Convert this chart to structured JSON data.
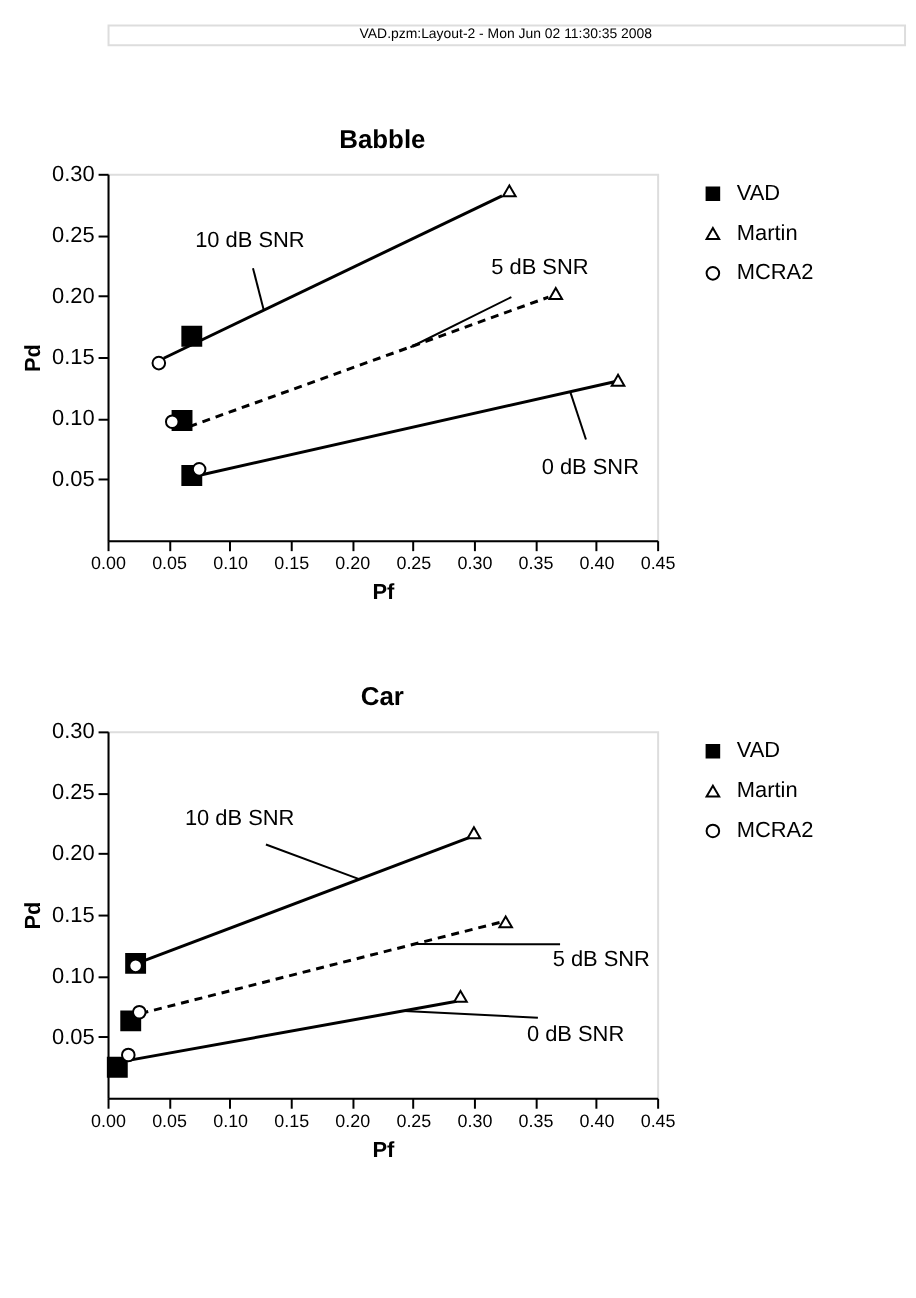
{
  "chart_data": [
    {
      "type": "scatter",
      "title": "Babble",
      "xlabel": "Pf",
      "ylabel": "Pd",
      "grid": false,
      "legend": "top right",
      "annotations": [
        "VAD.pzm:Layout-2 - Mon Jun 02 11:30:35 2008",
        {
          "text": "10 dB SNR",
          "x": 0.128,
          "y": 0.188
        },
        {
          "text": "5 dB SNR",
          "x": 0.248,
          "y": 0.158
        },
        {
          "text": "0 dB SNR",
          "x": 0.379,
          "y": 0.121
        }
      ],
      "xlim": [
        0,
        0.45
      ],
      "ylim": [
        0,
        0.3
      ],
      "xticks": [
        {
          "value": 0,
          "label": "0.00"
        },
        {
          "value": 0.05,
          "label": "0.05"
        },
        {
          "value": 0.1,
          "label": "0.10"
        },
        {
          "value": 0.15,
          "label": "0.15"
        },
        {
          "value": 0.2,
          "label": "0.20"
        },
        {
          "value": 0.25,
          "label": "0.25"
        },
        {
          "value": 0.3,
          "label": "0.30"
        },
        {
          "value": 0.35,
          "label": "0.35"
        },
        {
          "value": 0.4,
          "label": "0.40"
        },
        {
          "value": 0.45,
          "label": "0.45"
        }
      ],
      "yticks": [
        {
          "value": 0.05,
          "label": "0.05"
        },
        {
          "value": 0.1,
          "label": "0.10"
        },
        {
          "value": 0.15,
          "label": "0.15"
        },
        {
          "value": 0.2,
          "label": "0.20"
        },
        {
          "value": 0.25,
          "label": "0.25"
        },
        {
          "value": 0.3,
          "label": "0.30"
        }
      ],
      "series": [
        {
          "type": "line",
          "color": "#000000",
          "line_style": "solid",
          "marker": "none",
          "x": [
            0.046,
            0.323
          ],
          "values": [
            0.149,
            0.282
          ]
        },
        {
          "type": "line",
          "color": "#000000",
          "line_style": "dashed",
          "marker": "none",
          "x": [
            0.067,
            0.361
          ],
          "values": [
            0.093,
            0.199
          ]
        },
        {
          "type": "line",
          "color": "#000000",
          "line_style": "solid",
          "marker": "none",
          "x": [
            0.07,
            0.416
          ],
          "values": [
            0.052,
            0.13
          ]
        },
        {
          "type": "scatter",
          "name": "VAD",
          "color": "#000000",
          "marker": "square",
          "x": [
            0.069,
            0.061,
            0.069
          ],
          "values": [
            0.167,
            0.098,
            0.053
          ]
        },
        {
          "type": "scatter",
          "name": "Martin",
          "color": "#000000",
          "marker": "triangle",
          "x": [
            0.329,
            0.367,
            0.418
          ],
          "values": [
            0.286,
            0.202,
            0.131
          ]
        },
        {
          "type": "scatter",
          "name": "MCRA2",
          "color": "#000000",
          "marker": "circle",
          "x": [
            0.042,
            0.053,
            0.075
          ],
          "values": [
            0.145,
            0.097,
            0.058
          ]
        }
      ]
    },
    {
      "type": "scatter",
      "title": "Car",
      "xlabel": "Pf",
      "ylabel": "Pd",
      "grid": false,
      "legend": "top right",
      "annotations": [
        {
          "text": "10 dB SNR",
          "x": 0.206,
          "y": 0.179
        },
        {
          "text": "5 dB SNR",
          "x": 0.251,
          "y": 0.126
        },
        {
          "text": "0 dB SNR",
          "x": 0.243,
          "y": 0.071
        }
      ],
      "xlim": [
        0,
        0.45
      ],
      "ylim": [
        0,
        0.3
      ],
      "xticks": [
        {
          "value": 0,
          "label": "0.00"
        },
        {
          "value": 0.05,
          "label": "0.05"
        },
        {
          "value": 0.1,
          "label": "0.10"
        },
        {
          "value": 0.15,
          "label": "0.15"
        },
        {
          "value": 0.2,
          "label": "0.20"
        },
        {
          "value": 0.25,
          "label": "0.25"
        },
        {
          "value": 0.3,
          "label": "0.30"
        },
        {
          "value": 0.35,
          "label": "0.35"
        },
        {
          "value": 0.4,
          "label": "0.40"
        },
        {
          "value": 0.45,
          "label": "0.45"
        }
      ],
      "yticks": [
        {
          "value": 0.05,
          "label": "0.05"
        },
        {
          "value": 0.1,
          "label": "0.10"
        },
        {
          "value": 0.15,
          "label": "0.15"
        },
        {
          "value": 0.2,
          "label": "0.20"
        },
        {
          "value": 0.25,
          "label": "0.25"
        },
        {
          "value": 0.3,
          "label": "0.30"
        }
      ],
      "series": [
        {
          "type": "line",
          "color": "#000000",
          "line_style": "solid",
          "marker": "none",
          "x": [
            0.024,
            0.296
          ],
          "values": [
            0.11,
            0.213
          ]
        },
        {
          "type": "line",
          "color": "#000000",
          "line_style": "dashed",
          "marker": "none",
          "x": [
            0.027,
            0.323
          ],
          "values": [
            0.069,
            0.144
          ]
        },
        {
          "type": "line",
          "color": "#000000",
          "line_style": "solid",
          "marker": "none",
          "x": [
            0.008,
            0.286
          ],
          "values": [
            0.029,
            0.079
          ]
        },
        {
          "type": "scatter",
          "name": "VAD",
          "color": "#000000",
          "marker": "square",
          "x": [
            0.023,
            0.019,
            0.008
          ],
          "values": [
            0.11,
            0.063,
            0.025
          ]
        },
        {
          "type": "scatter",
          "name": "Martin",
          "color": "#000000",
          "marker": "triangle",
          "x": [
            0.3,
            0.326,
            0.289
          ],
          "values": [
            0.217,
            0.144,
            0.083
          ]
        },
        {
          "type": "scatter",
          "name": "MCRA2",
          "color": "#000000",
          "marker": "circle",
          "x": [
            0.023,
            0.026,
            0.017
          ],
          "values": [
            0.108,
            0.07,
            0.035
          ]
        }
      ]
    }
  ]
}
